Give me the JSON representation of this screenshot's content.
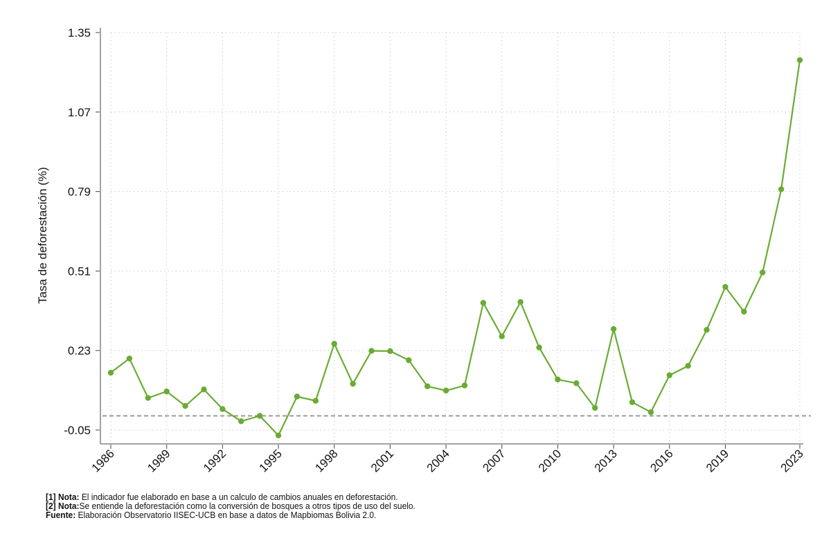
{
  "chart_data": {
    "type": "line",
    "ylabel": "Tasa de deforestación (%)",
    "xlabel": "",
    "x": [
      1986,
      1987,
      1988,
      1989,
      1990,
      1991,
      1992,
      1993,
      1994,
      1995,
      1996,
      1997,
      1998,
      1999,
      2000,
      2001,
      2002,
      2003,
      2004,
      2005,
      2006,
      2007,
      2008,
      2009,
      2010,
      2011,
      2012,
      2013,
      2014,
      2015,
      2016,
      2017,
      2018,
      2019,
      2020,
      2021,
      2022,
      2023
    ],
    "series": [
      {
        "color": "#6aab34",
        "values": [
          0.152,
          0.202,
          0.063,
          0.086,
          0.035,
          0.093,
          0.024,
          -0.019,
          0.0,
          -0.069,
          0.068,
          0.053,
          0.254,
          0.113,
          0.229,
          0.228,
          0.196,
          0.104,
          0.089,
          0.107,
          0.398,
          0.28,
          0.401,
          0.241,
          0.128,
          0.115,
          0.028,
          0.306,
          0.048,
          0.013,
          0.143,
          0.176,
          0.303,
          0.454,
          0.367,
          0.505,
          0.798,
          1.253
        ]
      }
    ],
    "xticks": [
      "1986",
      "1989",
      "1992",
      "1995",
      "1998",
      "2001",
      "2004",
      "2007",
      "2010",
      "2013",
      "2016",
      "2019",
      "2023"
    ],
    "yticks": [
      "-0.05",
      "0.23",
      "0.51",
      "0.79",
      "1.07",
      "1.35"
    ],
    "ylim": [
      -0.11,
      1.35
    ],
    "reference_line": {
      "y": 0.0,
      "style": "dashed",
      "color": "#999999"
    },
    "grid": true
  },
  "notes": [
    {
      "label": "[1] Nota:",
      "text": " El indicador fue elaborado en base a un calculo de cambios anuales en deforestación."
    },
    {
      "label": "[2] Nota:",
      "text": "Se entiende la deforestación como la conversión de bosques a otros tipos de uso del suelo."
    },
    {
      "label": "Fuente:",
      "text": " Elaboración Observatorio IISEC-UCB en base a datos de Mapbiomas Bolivia 2.0."
    }
  ]
}
